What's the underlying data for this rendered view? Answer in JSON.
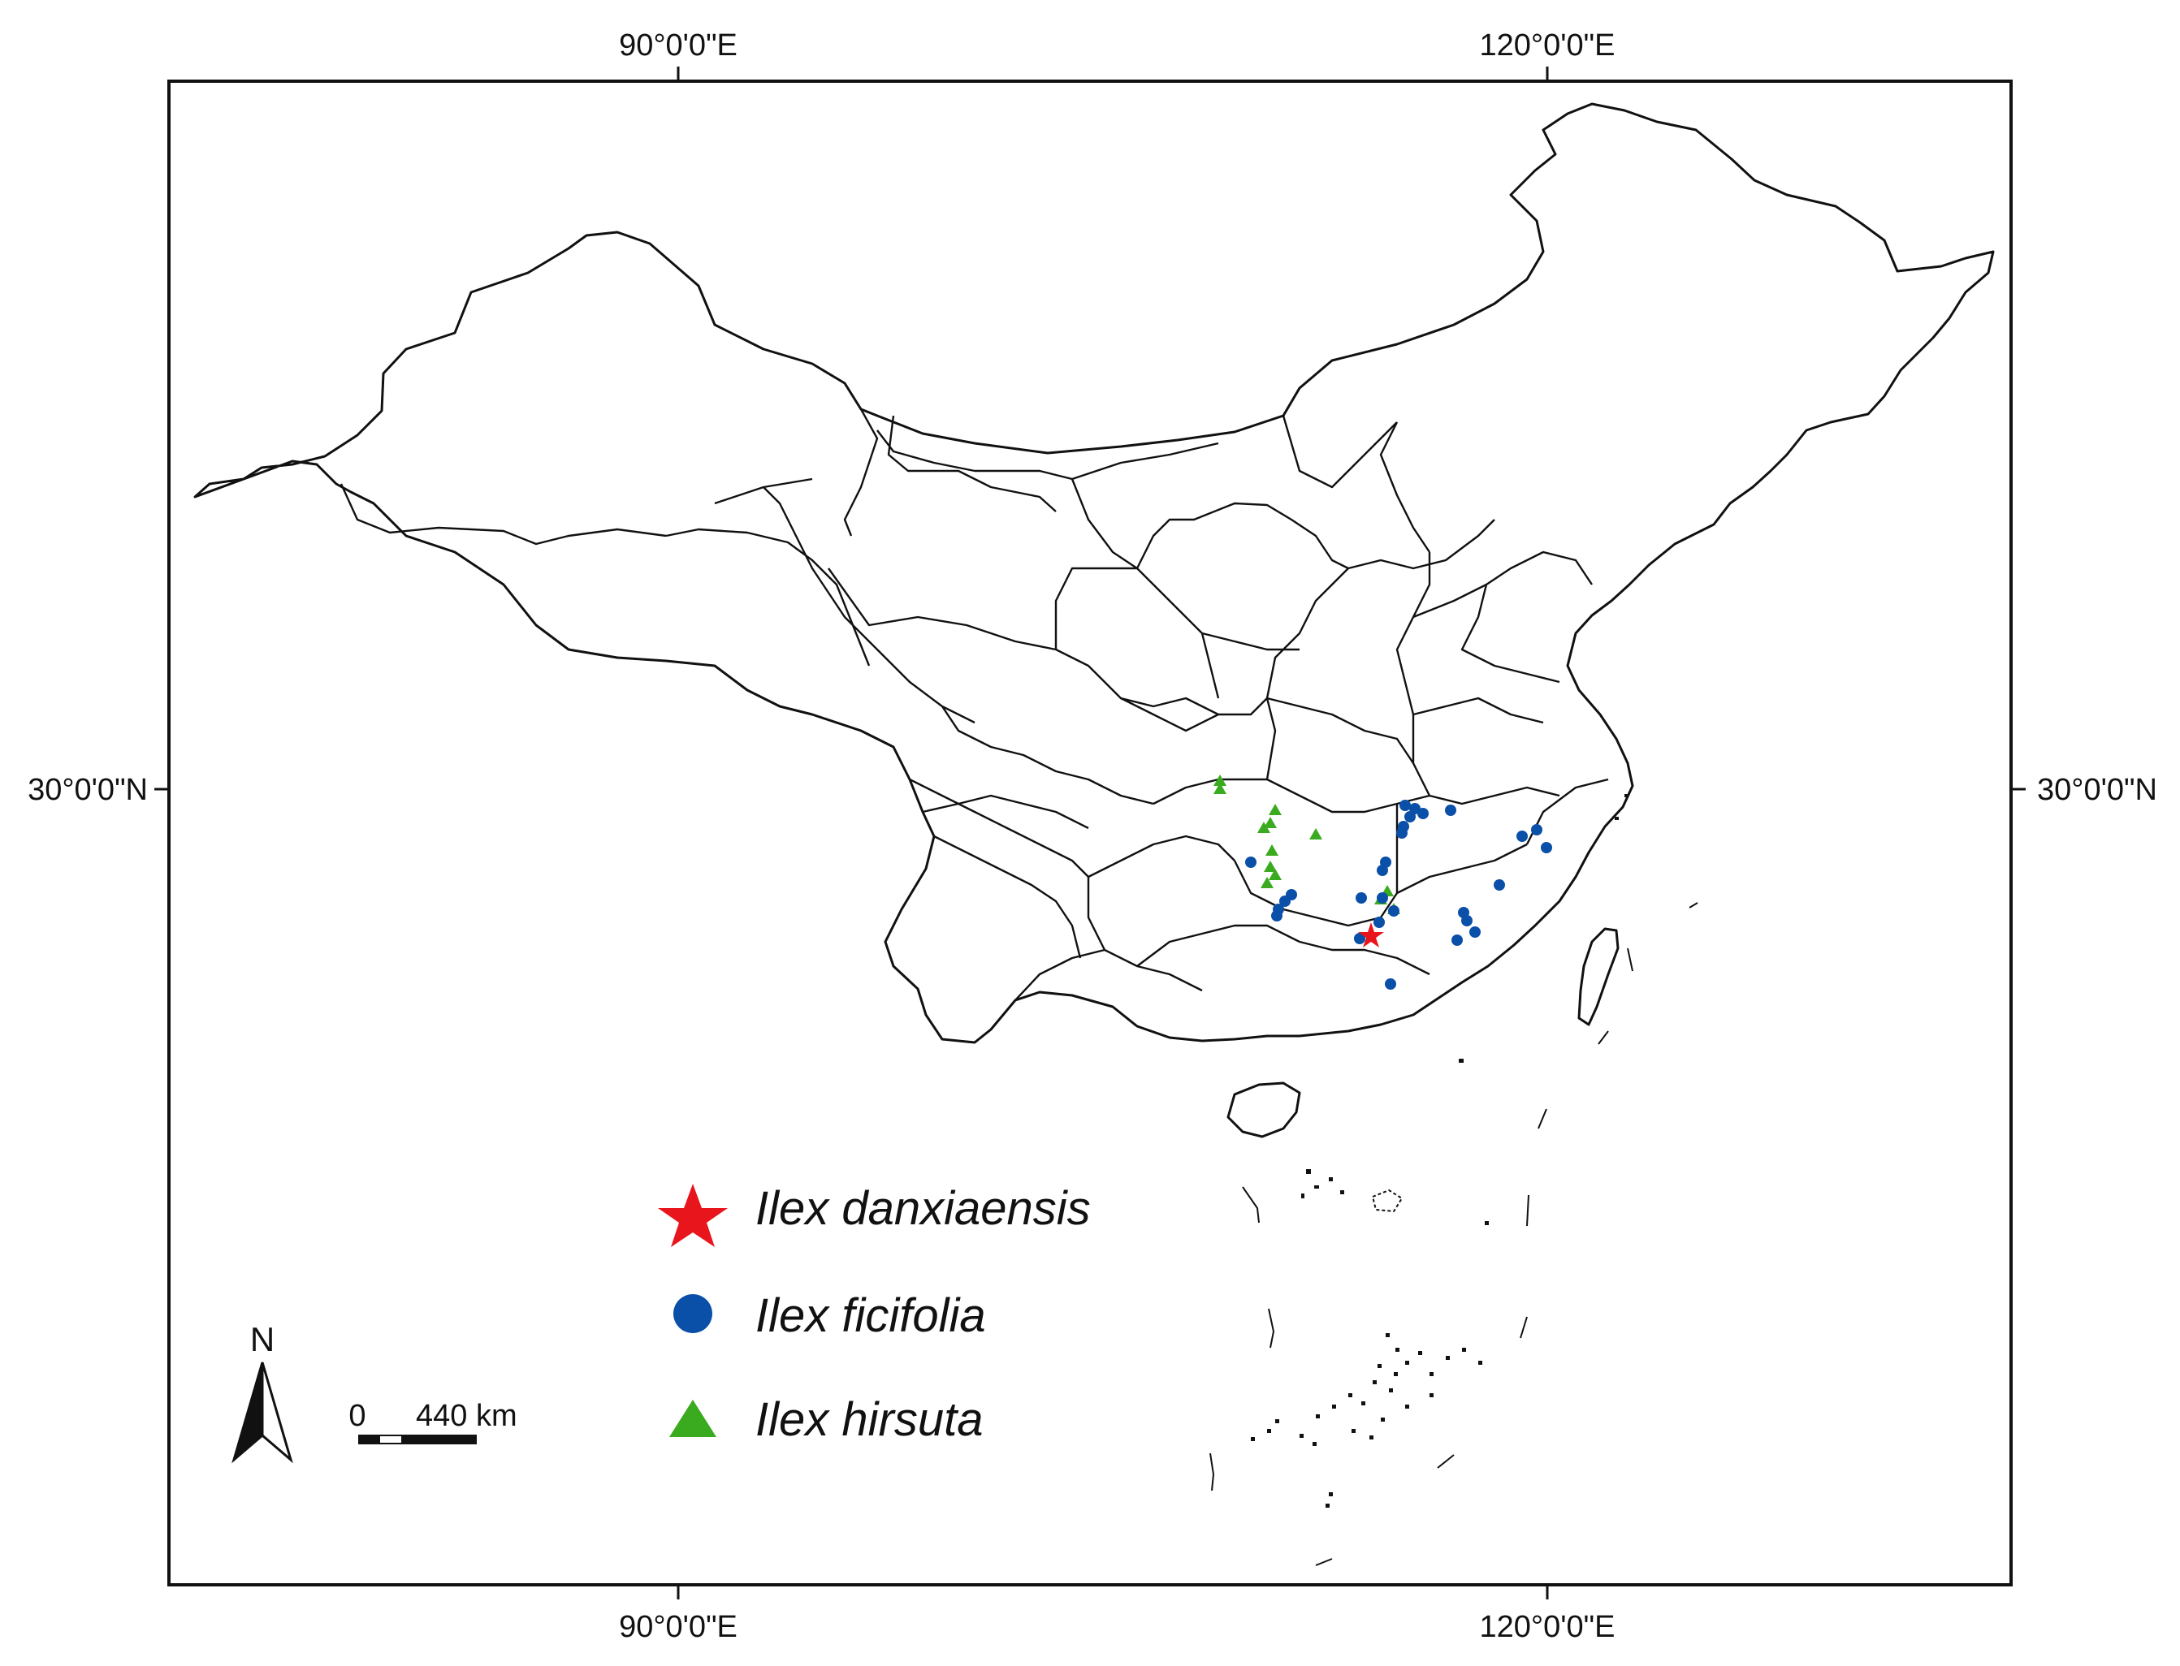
{
  "map": {
    "longitude_labels": [
      "90°0'0\"E",
      "120°0'0\"E"
    ],
    "latitude_labels": [
      "30°0'0\"N"
    ],
    "north_label": "N",
    "scale": {
      "label_start": "0",
      "label_end": "440 km"
    },
    "legend": [
      {
        "label": "Ilex danxiaensis",
        "symbol": "star",
        "color": "#e8161c"
      },
      {
        "label": "Ilex ficifolia",
        "symbol": "circle",
        "color": "#0a4fa8"
      },
      {
        "label": "Ilex hirsuta",
        "symbol": "triangle",
        "color": "#3aaa1e"
      }
    ],
    "colors": {
      "border": "#111111",
      "land": "#ffffff"
    }
  }
}
